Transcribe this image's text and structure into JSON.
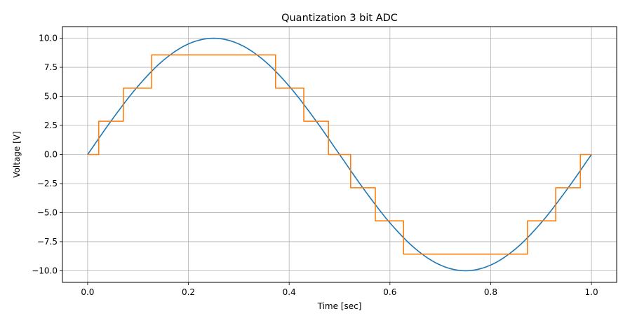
{
  "chart_data": {
    "type": "line",
    "title": "Quantization 3 bit ADC",
    "xlabel": "Time [sec]",
    "ylabel": "Voltage [V]",
    "xlim": [
      -0.05,
      1.05
    ],
    "ylim": [
      -11.0,
      11.0
    ],
    "grid": true,
    "x_ticks": [
      0.0,
      0.2,
      0.4,
      0.6,
      0.8,
      1.0
    ],
    "x_tick_labels": [
      "0.0",
      "0.2",
      "0.4",
      "0.6",
      "0.8",
      "1.0"
    ],
    "y_ticks": [
      10.0,
      7.5,
      5.0,
      2.5,
      0.0,
      -2.5,
      -5.0,
      -7.5,
      -10.0
    ],
    "y_tick_labels": [
      "10.0",
      "7.5",
      "5.0",
      "2.5",
      "0.0",
      "−2.5",
      "−5.0",
      "−7.5",
      "−10.0"
    ],
    "series": [
      {
        "color": "#1f77b4",
        "style": "smooth",
        "x": [
          0.0,
          0.05,
          0.1,
          0.15,
          0.2,
          0.25,
          0.3,
          0.35,
          0.4,
          0.45,
          0.5,
          0.55,
          0.6,
          0.65,
          0.7,
          0.75,
          0.8,
          0.85,
          0.9,
          0.95,
          1.0
        ],
        "y": [
          0.0,
          3.09,
          5.88,
          8.09,
          9.51,
          10.0,
          9.51,
          8.09,
          5.88,
          3.09,
          0.0,
          -3.09,
          -5.88,
          -8.09,
          -9.51,
          -10.0,
          -9.51,
          -8.09,
          -5.88,
          -3.09,
          0.0
        ]
      },
      {
        "color": "#ff7f0e",
        "style": "step",
        "x": [
          0.0,
          0.022,
          0.022,
          0.071,
          0.071,
          0.127,
          0.127,
          0.373,
          0.373,
          0.429,
          0.429,
          0.478,
          0.478,
          0.522,
          0.522,
          0.571,
          0.571,
          0.627,
          0.627,
          0.873,
          0.873,
          0.929,
          0.929,
          0.978,
          0.978,
          1.0
        ],
        "y": [
          0.0,
          0.0,
          2.86,
          2.86,
          5.71,
          5.71,
          8.57,
          8.57,
          5.71,
          5.71,
          2.86,
          2.86,
          0.0,
          0.0,
          -2.86,
          -2.86,
          -5.71,
          -5.71,
          -8.57,
          -8.57,
          -5.71,
          -5.71,
          -2.86,
          -2.86,
          0.0,
          0.0
        ]
      }
    ]
  }
}
